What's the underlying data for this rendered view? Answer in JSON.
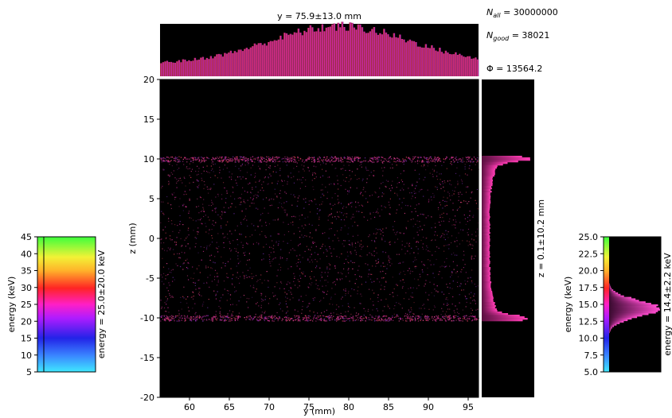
{
  "stats": {
    "n_all": {
      "symbol": "N",
      "sub": "all",
      "value": "= 30000000"
    },
    "n_good": {
      "symbol": "N",
      "sub": "good",
      "value": "= 38021"
    },
    "flux": {
      "label": "Φ = 13564.2"
    }
  },
  "colors": {
    "background": "#000000",
    "main_hist": "#e0289a",
    "edge_hist": "#d81a8a"
  },
  "chart_data": [
    {
      "type": "heatmap",
      "name": "2D intensity image",
      "xlabel": "y (mm)",
      "ylabel": "z (mm)",
      "xlim": [
        56.3,
        96.3
      ],
      "ylim": [
        -20,
        20
      ],
      "xticks": [
        "60",
        "65",
        "70",
        "75",
        "80",
        "85",
        "90",
        "95"
      ],
      "yticks": [
        "20",
        "15",
        "10",
        "5",
        "0",
        "-5",
        "-10",
        "-15",
        "-20"
      ],
      "beam_edges_z": [
        10,
        -10
      ],
      "colormap": "energy (pink/red/violet points on black)"
    },
    {
      "type": "bar",
      "name": "top histogram",
      "title": "y = 75.9±13.0 mm",
      "center": 75.9,
      "fwhm": 13.0,
      "x_range": [
        56.3,
        96.3
      ]
    },
    {
      "type": "bar",
      "name": "side histogram",
      "label": "z = 0.1±10.2 mm",
      "center": 0.1,
      "fwhm": 10.2,
      "peaks_z": [
        10,
        -10
      ]
    },
    {
      "type": "heatmap",
      "name": "energy colorbar (left)",
      "ylabel": "energy (keV)",
      "ylim": [
        5,
        45
      ],
      "yticks": [
        "45",
        "40",
        "35",
        "30",
        "25",
        "20",
        "15",
        "10",
        "5"
      ],
      "label": "energy = 25.0±20.0 keV"
    },
    {
      "type": "bar",
      "name": "energy histogram (right)",
      "ylabel": "energy (keV)",
      "ylim": [
        5.0,
        25.0
      ],
      "yticks": [
        "25.0",
        "22.5",
        "20.0",
        "17.5",
        "15.0",
        "12.5",
        "10.0",
        "7.5",
        "5.0"
      ],
      "label": "energy = 14.4±2.2 keV",
      "center": 14.4,
      "fwhm": 2.2
    }
  ]
}
